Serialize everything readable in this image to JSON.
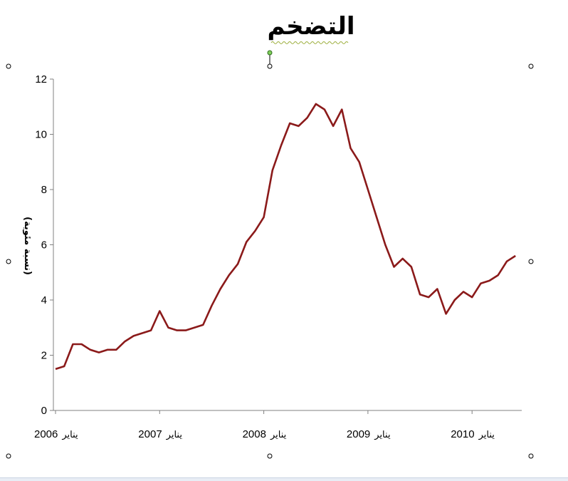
{
  "chart_data": {
    "type": "line",
    "title": "التضخم",
    "ylabel": "(نسبة مئوية)",
    "xlabel": "",
    "ylim": [
      0,
      12
    ],
    "yticks": [
      0,
      2,
      4,
      6,
      8,
      10,
      12
    ],
    "grid": false,
    "x_tick_labels": [
      {
        "year": "2006",
        "month": "يناير"
      },
      {
        "year": "2007",
        "month": "يناير"
      },
      {
        "year": "2008",
        "month": "يناير"
      },
      {
        "year": "2009",
        "month": "يناير"
      },
      {
        "year": "2010",
        "month": "يناير"
      }
    ],
    "line_color": "#8b1a1a",
    "series": [
      {
        "values": [
          1.5,
          1.6,
          2.4,
          2.4,
          2.2,
          2.1,
          2.2,
          2.2,
          2.5,
          2.7,
          2.8,
          2.9,
          3.6,
          3.0,
          2.9,
          2.9,
          3.0,
          3.1,
          3.8,
          4.4,
          4.9,
          5.3,
          6.1,
          6.5,
          7.0,
          8.7,
          9.6,
          10.4,
          10.3,
          10.6,
          11.1,
          10.9,
          10.3,
          10.9,
          9.5,
          9.0,
          8.0,
          7.0,
          6.0,
          5.2,
          5.5,
          5.2,
          4.2,
          4.1,
          4.4,
          3.5,
          4.0,
          4.3,
          4.1,
          4.6,
          4.7,
          4.9,
          5.4,
          5.6
        ]
      }
    ]
  }
}
